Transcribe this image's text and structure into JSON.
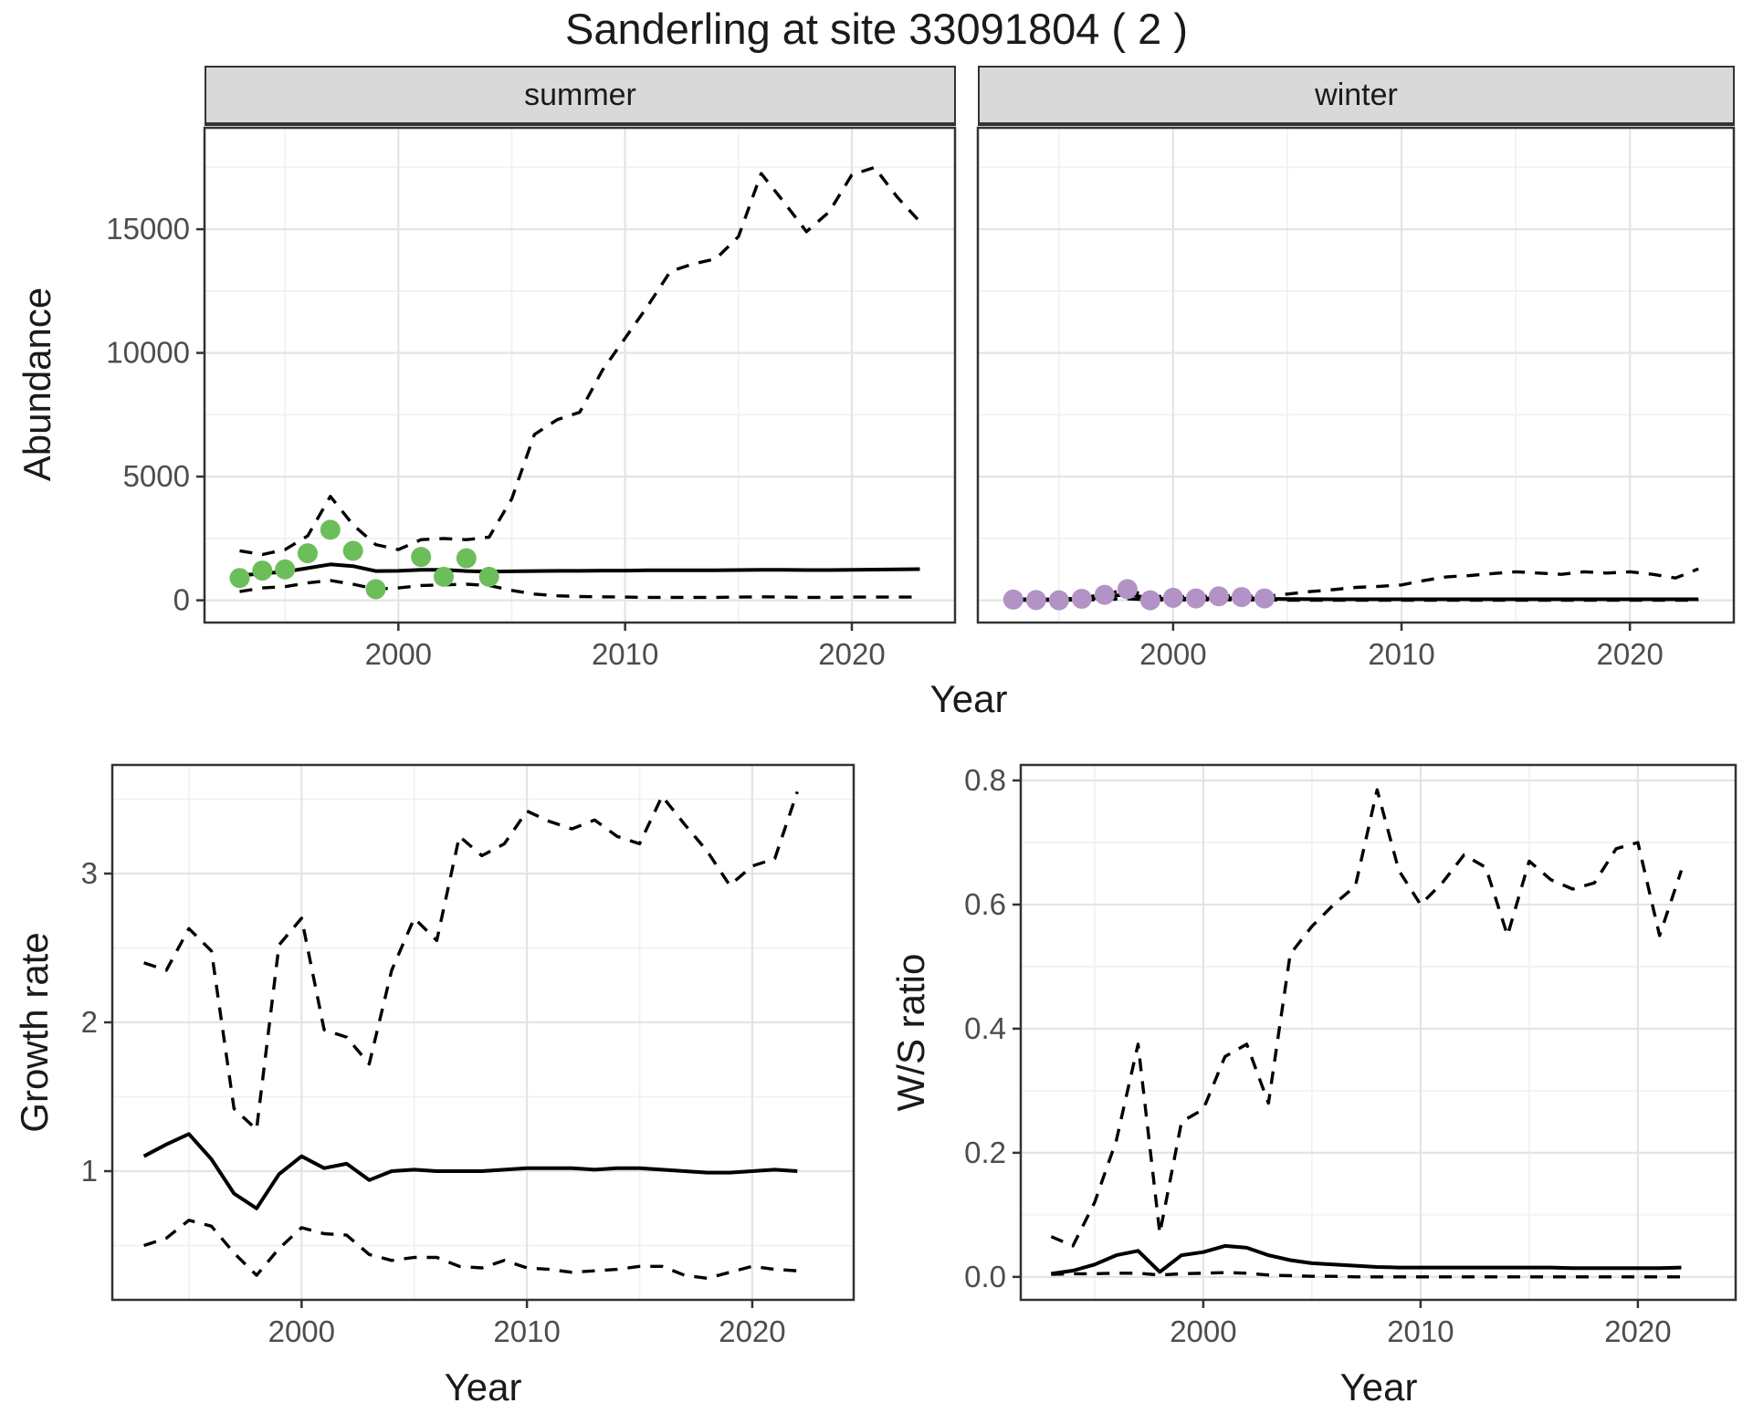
{
  "title": "Sanderling at site 33091804 ( 2 )",
  "facet_labels": {
    "summer": "summer",
    "winter": "winter"
  },
  "axes": {
    "abundance": "Abundance",
    "growth": "Growth rate",
    "ws": "W/S ratio",
    "year": "Year"
  },
  "colors": {
    "summer_points": "#6cbe5b",
    "winter_points": "#b392c6",
    "line": "#000000",
    "panel_border": "#333333",
    "grid_major": "#e4e4e4",
    "grid_minor": "#f0f0f0",
    "strip_bg": "#d9d9d9",
    "tick_text": "#4d4d4d"
  },
  "chart_data": [
    {
      "id": "abundance-summer",
      "type": "line",
      "facet": "summer",
      "xlabel": "Year",
      "ylabel": "Abundance",
      "xlim": [
        1991.45,
        2024.55
      ],
      "ylim": [
        -900,
        19100
      ],
      "x_ticks": [
        2000,
        2010,
        2020
      ],
      "x_tick_labels": [
        "2000",
        "2010",
        "2020"
      ],
      "x_minor": [
        1995,
        2005,
        2015
      ],
      "y_ticks": [
        0,
        5000,
        10000,
        15000
      ],
      "y_tick_labels": [
        "0",
        "5000",
        "10000",
        "15000"
      ],
      "y_minor": [
        2500,
        7500,
        12500,
        17500
      ],
      "show_y_labels": true,
      "series": [
        {
          "name": "upper-ci",
          "style": "dashed",
          "x": [
            1993,
            1994,
            1995,
            1996,
            1997,
            1998,
            1999,
            2000,
            2001,
            2002,
            2003,
            2004,
            2005,
            2006,
            2007,
            2008,
            2009,
            2010,
            2011,
            2012,
            2013,
            2014,
            2015,
            2016,
            2017,
            2018,
            2019,
            2020,
            2021,
            2022,
            2023
          ],
          "y": [
            2000,
            1850,
            2050,
            2600,
            4200,
            3050,
            2250,
            2050,
            2450,
            2500,
            2450,
            2550,
            4100,
            6700,
            7300,
            7600,
            9300,
            10600,
            11900,
            13300,
            13600,
            13800,
            14700,
            17250,
            16100,
            14900,
            15700,
            17200,
            17500,
            16300,
            15300
          ]
        },
        {
          "name": "median",
          "style": "solid",
          "x": [
            1993,
            1994,
            1995,
            1996,
            1997,
            1998,
            1999,
            2000,
            2001,
            2002,
            2003,
            2004,
            2005,
            2006,
            2007,
            2008,
            2009,
            2010,
            2011,
            2012,
            2013,
            2014,
            2015,
            2016,
            2017,
            2018,
            2019,
            2020,
            2021,
            2022,
            2023
          ],
          "y": [
            1000,
            1080,
            1150,
            1300,
            1450,
            1380,
            1180,
            1190,
            1230,
            1230,
            1180,
            1160,
            1170,
            1180,
            1190,
            1190,
            1200,
            1200,
            1210,
            1210,
            1210,
            1210,
            1220,
            1230,
            1230,
            1220,
            1220,
            1230,
            1240,
            1250,
            1260
          ]
        },
        {
          "name": "lower-ci",
          "style": "dashed",
          "x": [
            1993,
            1994,
            1995,
            1996,
            1997,
            1998,
            1999,
            2000,
            2001,
            2002,
            2003,
            2004,
            2005,
            2006,
            2007,
            2008,
            2009,
            2010,
            2011,
            2012,
            2013,
            2014,
            2015,
            2016,
            2017,
            2018,
            2019,
            2020,
            2021,
            2022,
            2023
          ],
          "y": [
            350,
            500,
            550,
            700,
            800,
            650,
            450,
            500,
            600,
            620,
            650,
            600,
            400,
            250,
            180,
            150,
            140,
            130,
            120,
            120,
            120,
            120,
            130,
            140,
            130,
            120,
            120,
            130,
            130,
            130,
            130
          ]
        }
      ],
      "points": [
        {
          "name": "observed-summer",
          "color_key": "summer_points",
          "x": [
            1993,
            1994,
            1995,
            1996,
            1997,
            1998,
            1999,
            2001,
            2002,
            2003,
            2004
          ],
          "y": [
            900,
            1200,
            1250,
            1900,
            2850,
            2000,
            450,
            1750,
            950,
            1700,
            950
          ]
        }
      ]
    },
    {
      "id": "abundance-winter",
      "type": "line",
      "facet": "winter",
      "xlabel": "Year",
      "ylabel": "Abundance",
      "xlim": [
        1991.45,
        2024.55
      ],
      "ylim": [
        -900,
        19100
      ],
      "x_ticks": [
        2000,
        2010,
        2020
      ],
      "x_tick_labels": [
        "2000",
        "2010",
        "2020"
      ],
      "x_minor": [
        1995,
        2005,
        2015
      ],
      "y_ticks": [
        0,
        5000,
        10000,
        15000
      ],
      "y_tick_labels": [
        "0",
        "5000",
        "10000",
        "15000"
      ],
      "y_minor": [
        2500,
        7500,
        12500,
        17500
      ],
      "show_y_labels": false,
      "series": [
        {
          "name": "upper-ci",
          "style": "dashed",
          "x": [
            1993,
            1994,
            1995,
            1996,
            1997,
            1998,
            1999,
            2000,
            2001,
            2002,
            2003,
            2004,
            2005,
            2006,
            2007,
            2008,
            2009,
            2010,
            2011,
            2012,
            2013,
            2014,
            2015,
            2016,
            2017,
            2018,
            2019,
            2020,
            2021,
            2022,
            2023
          ],
          "y": [
            60,
            50,
            50,
            90,
            260,
            430,
            150,
            160,
            140,
            190,
            170,
            150,
            250,
            350,
            430,
            520,
            560,
            620,
            800,
            950,
            1000,
            1080,
            1150,
            1100,
            1050,
            1150,
            1100,
            1150,
            1050,
            900,
            1270
          ]
        },
        {
          "name": "median",
          "style": "solid",
          "x": [
            1993,
            1994,
            1995,
            1996,
            1997,
            1998,
            1999,
            2000,
            2001,
            2002,
            2003,
            2004,
            2005,
            2006,
            2007,
            2008,
            2009,
            2010,
            2011,
            2012,
            2013,
            2014,
            2015,
            2016,
            2017,
            2018,
            2019,
            2020,
            2021,
            2022,
            2023
          ],
          "y": [
            20,
            15,
            10,
            40,
            120,
            260,
            60,
            70,
            60,
            90,
            80,
            60,
            50,
            45,
            40,
            40,
            40,
            40,
            40,
            40,
            40,
            40,
            40,
            40,
            40,
            40,
            40,
            40,
            40,
            40,
            40
          ]
        },
        {
          "name": "lower-ci",
          "style": "dashed",
          "x": [
            1993,
            1994,
            1995,
            1996,
            1997,
            1998,
            1999,
            2000,
            2001,
            2002,
            2003,
            2004,
            2005,
            2006,
            2007,
            2008,
            2009,
            2010,
            2011,
            2012,
            2013,
            2014,
            2015,
            2016,
            2017,
            2018,
            2019,
            2020,
            2021,
            2022,
            2023
          ],
          "y": [
            0,
            0,
            0,
            10,
            30,
            60,
            10,
            15,
            10,
            20,
            15,
            10,
            0,
            0,
            0,
            0,
            0,
            0,
            0,
            0,
            0,
            0,
            0,
            0,
            0,
            0,
            0,
            0,
            0,
            0,
            0
          ]
        }
      ],
      "points": [
        {
          "name": "observed-winter",
          "color_key": "winter_points",
          "x": [
            1993,
            1994,
            1995,
            1996,
            1997,
            1998,
            1999,
            2000,
            2001,
            2002,
            2003,
            2004
          ],
          "y": [
            30,
            10,
            0,
            60,
            220,
            450,
            0,
            100,
            75,
            160,
            130,
            75
          ]
        }
      ]
    },
    {
      "id": "growth-rate",
      "type": "line",
      "xlabel": "Year",
      "ylabel": "Growth rate",
      "xlim": [
        1991.6,
        2024.5
      ],
      "ylim": [
        0.135,
        3.73
      ],
      "x_ticks": [
        2000,
        2010,
        2020
      ],
      "x_tick_labels": [
        "2000",
        "2010",
        "2020"
      ],
      "x_minor": [
        1995,
        2005,
        2015
      ],
      "y_ticks": [
        1,
        2,
        3
      ],
      "y_tick_labels": [
        "1",
        "2",
        "3"
      ],
      "y_minor": [
        0.5,
        1.5,
        2.5,
        3.5
      ],
      "show_y_labels": true,
      "series": [
        {
          "name": "upper-ci",
          "style": "dashed",
          "x": [
            1993,
            1994,
            1995,
            1996,
            1997,
            1998,
            1999,
            2000,
            2001,
            2002,
            2003,
            2004,
            2005,
            2006,
            2007,
            2008,
            2009,
            2010,
            2011,
            2012,
            2013,
            2014,
            2015,
            2016,
            2017,
            2018,
            2019,
            2020,
            2021,
            2022
          ],
          "y": [
            2.4,
            2.35,
            2.63,
            2.48,
            1.42,
            1.28,
            2.52,
            2.7,
            1.95,
            1.9,
            1.72,
            2.35,
            2.7,
            2.55,
            3.25,
            3.12,
            3.2,
            3.42,
            3.35,
            3.3,
            3.36,
            3.25,
            3.2,
            3.52,
            3.33,
            3.15,
            2.92,
            3.05,
            3.1,
            3.55
          ]
        },
        {
          "name": "median",
          "style": "solid",
          "x": [
            1993,
            1994,
            1995,
            1996,
            1997,
            1998,
            1999,
            2000,
            2001,
            2002,
            2003,
            2004,
            2005,
            2006,
            2007,
            2008,
            2009,
            2010,
            2011,
            2012,
            2013,
            2014,
            2015,
            2016,
            2017,
            2018,
            2019,
            2020,
            2021,
            2022
          ],
          "y": [
            1.1,
            1.18,
            1.25,
            1.08,
            0.85,
            0.75,
            0.98,
            1.1,
            1.02,
            1.05,
            0.94,
            1.0,
            1.01,
            1.0,
            1.0,
            1.0,
            1.01,
            1.02,
            1.02,
            1.02,
            1.01,
            1.02,
            1.02,
            1.01,
            1.0,
            0.99,
            0.99,
            1.0,
            1.01,
            1.0
          ]
        },
        {
          "name": "lower-ci",
          "style": "dashed",
          "x": [
            1993,
            1994,
            1995,
            1996,
            1997,
            1998,
            1999,
            2000,
            2001,
            2002,
            2003,
            2004,
            2005,
            2006,
            2007,
            2008,
            2009,
            2010,
            2011,
            2012,
            2013,
            2014,
            2015,
            2016,
            2017,
            2018,
            2019,
            2020,
            2021,
            2022
          ],
          "y": [
            0.5,
            0.55,
            0.67,
            0.63,
            0.45,
            0.3,
            0.48,
            0.62,
            0.58,
            0.57,
            0.44,
            0.4,
            0.42,
            0.42,
            0.36,
            0.35,
            0.4,
            0.35,
            0.34,
            0.32,
            0.33,
            0.34,
            0.36,
            0.36,
            0.3,
            0.28,
            0.32,
            0.36,
            0.34,
            0.33
          ]
        }
      ],
      "points": []
    },
    {
      "id": "ws-ratio",
      "type": "line",
      "xlabel": "Year",
      "ylabel": "W/S ratio",
      "xlim": [
        1991.6,
        2024.5
      ],
      "ylim": [
        -0.037,
        0.825
      ],
      "x_ticks": [
        2000,
        2010,
        2020
      ],
      "x_tick_labels": [
        "2000",
        "2010",
        "2020"
      ],
      "x_minor": [
        1995,
        2005,
        2015
      ],
      "y_ticks": [
        0.0,
        0.2,
        0.4,
        0.6,
        0.8
      ],
      "y_tick_labels": [
        "0.0",
        "0.2",
        "0.4",
        "0.6",
        "0.8"
      ],
      "y_minor": [
        0.1,
        0.3,
        0.5,
        0.7
      ],
      "show_y_labels": true,
      "series": [
        {
          "name": "upper-ci",
          "style": "dashed",
          "x": [
            1993,
            1994,
            1995,
            1996,
            1997,
            1998,
            1999,
            2000,
            2001,
            2002,
            2003,
            2004,
            2005,
            2006,
            2007,
            2008,
            2009,
            2010,
            2011,
            2012,
            2013,
            2014,
            2015,
            2016,
            2017,
            2018,
            2019,
            2020,
            2021,
            2022
          ],
          "y": [
            0.065,
            0.05,
            0.12,
            0.22,
            0.375,
            0.07,
            0.25,
            0.27,
            0.355,
            0.375,
            0.28,
            0.52,
            0.565,
            0.6,
            0.63,
            0.785,
            0.655,
            0.6,
            0.635,
            0.68,
            0.66,
            0.55,
            0.67,
            0.64,
            0.625,
            0.635,
            0.69,
            0.7,
            0.55,
            0.655
          ]
        },
        {
          "name": "median",
          "style": "solid",
          "x": [
            1993,
            1994,
            1995,
            1996,
            1997,
            1998,
            1999,
            2000,
            2001,
            2002,
            2003,
            2004,
            2005,
            2006,
            2007,
            2008,
            2009,
            2010,
            2011,
            2012,
            2013,
            2014,
            2015,
            2016,
            2017,
            2018,
            2019,
            2020,
            2021,
            2022
          ],
          "y": [
            0.005,
            0.01,
            0.02,
            0.035,
            0.042,
            0.008,
            0.035,
            0.04,
            0.05,
            0.047,
            0.035,
            0.027,
            0.022,
            0.02,
            0.018,
            0.016,
            0.015,
            0.015,
            0.015,
            0.015,
            0.015,
            0.015,
            0.015,
            0.015,
            0.014,
            0.014,
            0.014,
            0.014,
            0.014,
            0.015
          ]
        },
        {
          "name": "lower-ci",
          "style": "dashed",
          "x": [
            1993,
            1994,
            1995,
            1996,
            1997,
            1998,
            1999,
            2000,
            2001,
            2002,
            2003,
            2004,
            2005,
            2006,
            2007,
            2008,
            2009,
            2010,
            2011,
            2012,
            2013,
            2014,
            2015,
            2016,
            2017,
            2018,
            2019,
            2020,
            2021,
            2022
          ],
          "y": [
            0.004,
            0.005,
            0.005,
            0.006,
            0.006,
            0.003,
            0.005,
            0.006,
            0.007,
            0.006,
            0.003,
            0.002,
            0.001,
            0.001,
            0,
            0,
            0,
            0,
            0,
            0,
            0,
            0,
            0,
            0,
            0,
            0,
            0,
            0,
            0,
            0
          ]
        }
      ],
      "points": []
    }
  ]
}
